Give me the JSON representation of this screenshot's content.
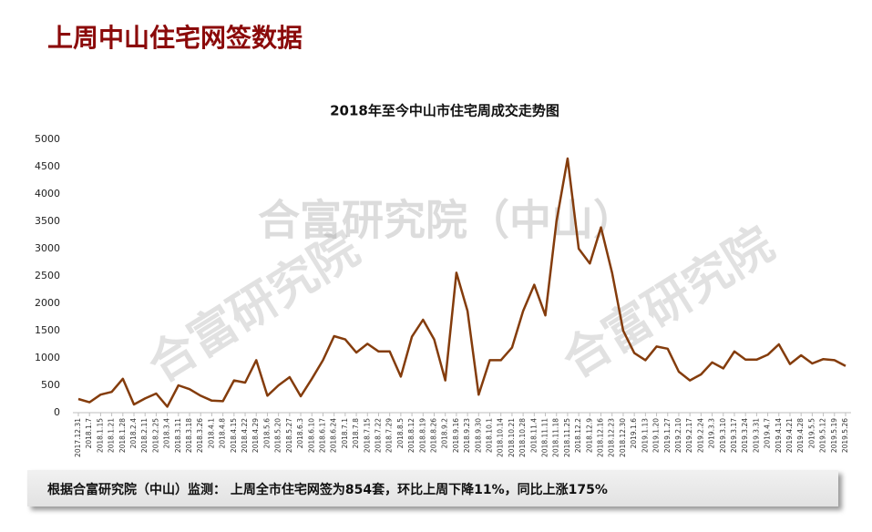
{
  "page_title": "上周中山住宅网签数据",
  "note": "根据合富研究院（中山）监测： 上周全市住宅网签为854套，环比上周下降11%，同比上涨175%",
  "watermarks": [
    "合富研究院（中山）",
    "合富研究院",
    "合富研究院"
  ],
  "chart_data": {
    "type": "line",
    "title": "2018年至今中山市住宅周成交走势图",
    "categories": [
      "2017.12.31",
      "2018.1.7",
      "2018.1.15",
      "2018.1.21",
      "2018.1.28",
      "2018.2.4",
      "2018.2.11",
      "2018.2.25",
      "2018.3.4",
      "2018.3.11",
      "2018.3.18",
      "2018.3.26",
      "2018.4.1",
      "2018.4.8",
      "2018.4.15",
      "2018.4.22",
      "2018.4.29",
      "2018.5.6",
      "2018.5.20",
      "2018.5.27",
      "2018.6.3",
      "2018.6.10",
      "2018.6.17",
      "2018.6.24",
      "2018.7.1",
      "2018.7.8",
      "2018.7.15",
      "2018.7.22",
      "2018.7.29",
      "2018.8.5",
      "2018.8.12",
      "2018.8.19",
      "2018.8.26",
      "2018.9.2",
      "2018.9.16",
      "2018.9.23",
      "2018.9.30",
      "2018.10.1",
      "2018.10.14",
      "2018.10.21",
      "2018.10.28",
      "2018.11.4",
      "2018.11.11",
      "2018.11.18",
      "2018.11.25",
      "2018.12.2",
      "2018.12.9",
      "2018.12.16",
      "2018.12.23",
      "2018.12.30",
      "2019.1.6",
      "2019.1.13",
      "2019.1.20",
      "2019.1.27",
      "2019.2.10",
      "2019.2.17",
      "2019.2.24",
      "2019.3.3",
      "2019.3.10",
      "2019.3.17",
      "2019.3.24",
      "2019.3.31",
      "2019.4.7",
      "2019.4.14",
      "2019.4.21",
      "2019.4.28",
      "2019.5.5",
      "2019.5.12",
      "2019.5.19",
      "2019.5.26"
    ],
    "values": [
      250,
      190,
      330,
      380,
      620,
      150,
      260,
      350,
      110,
      500,
      430,
      310,
      220,
      210,
      590,
      550,
      960,
      310,
      500,
      650,
      300,
      620,
      960,
      1400,
      1340,
      1100,
      1260,
      1120,
      1120,
      660,
      1390,
      1700,
      1340,
      590,
      2560,
      1860,
      330,
      960,
      960,
      1190,
      1860,
      2340,
      1780,
      3500,
      4650,
      3000,
      2730,
      3390,
      2560,
      1500,
      1090,
      960,
      1210,
      1170,
      750,
      590,
      700,
      920,
      810,
      1120,
      970,
      970,
      1060,
      1250,
      890,
      1050,
      900,
      980,
      960,
      854
    ],
    "color": "#843c0c",
    "ylim": [
      0,
      5000
    ],
    "yticks": [
      0,
      500,
      1000,
      1500,
      2000,
      2500,
      3000,
      3500,
      4000,
      4500,
      5000
    ],
    "grid": false
  }
}
